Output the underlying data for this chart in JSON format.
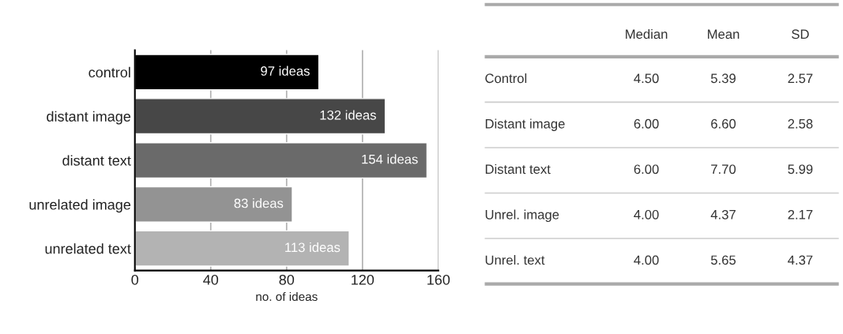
{
  "chart_data": [
    {
      "type": "bar",
      "orientation": "horizontal",
      "categories": [
        "control",
        "distant image",
        "distant text",
        "unrelated image",
        "unrelated text"
      ],
      "values": [
        97,
        132,
        154,
        83,
        113
      ],
      "colors": [
        "#000000",
        "#474747",
        "#6a6a6a",
        "#939393",
        "#b3b3b3"
      ],
      "value_labels": [
        "97 ideas",
        "132 ideas",
        "154 ideas",
        "83 ideas",
        "113 ideas"
      ],
      "xlabel": "no. of ideas",
      "xlim": [
        0,
        160
      ],
      "xticks": [
        0,
        40,
        80,
        120,
        160
      ],
      "grid": "x"
    },
    {
      "type": "other",
      "categories": [
        "Median",
        "Mean",
        "SD"
      ],
      "y_categories": [
        "Control",
        "Distant image",
        "Distant text",
        "Unrel. image",
        "Unrel. text"
      ],
      "cell_labels": [
        [
          "4.50",
          "5.39",
          "2.57"
        ],
        [
          "6.00",
          "6.60",
          "2.58"
        ],
        [
          "6.00",
          "7.70",
          "5.99"
        ],
        [
          "4.00",
          "4.37",
          "2.17"
        ],
        [
          "4.00",
          "5.65",
          "4.37"
        ]
      ]
    }
  ]
}
